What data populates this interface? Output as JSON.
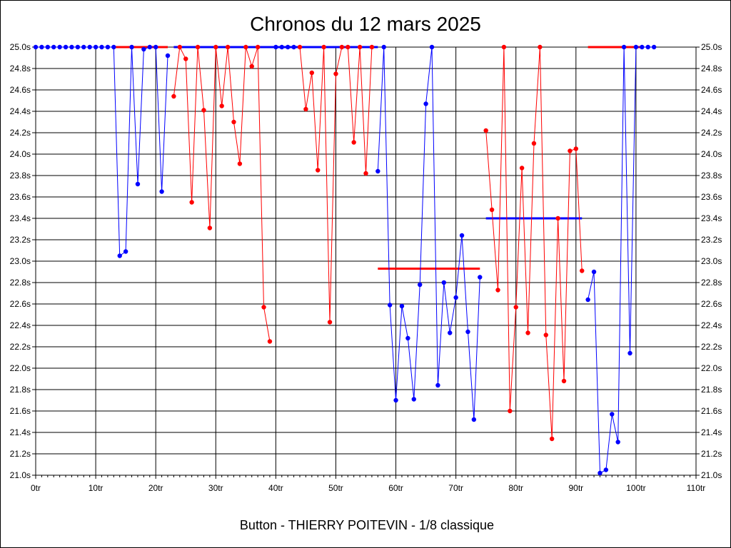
{
  "title": "Chronos du 12 mars 2025",
  "caption": "Button - THIERRY POITEVIN - 1/8 classique",
  "colors": {
    "red": "#ff0000",
    "blue": "#0000ff",
    "grid": "#000000",
    "background": "#ffffff"
  },
  "chart_data": {
    "type": "line",
    "title": "Chronos du 12 mars 2025",
    "xlabel": "",
    "ylabel": "",
    "x_unit": "tr",
    "y_unit": "s",
    "xlim": [
      0,
      110
    ],
    "ylim": [
      21.0,
      25.0
    ],
    "x_ticks": [
      0,
      10,
      20,
      30,
      40,
      50,
      60,
      70,
      80,
      90,
      100,
      110
    ],
    "x_tick_labels": [
      "0tr",
      "10tr",
      "20tr",
      "30tr",
      "40tr",
      "50tr",
      "60tr",
      "70tr",
      "80tr",
      "90tr",
      "100tr",
      "110tr"
    ],
    "y_ticks": [
      21.0,
      21.2,
      21.4,
      21.6,
      21.8,
      22.0,
      22.2,
      22.4,
      22.6,
      22.8,
      23.0,
      23.2,
      23.4,
      23.6,
      23.8,
      24.0,
      24.2,
      24.4,
      24.6,
      24.8,
      25.0
    ],
    "y_tick_labels": [
      "21.0s",
      "21.2s",
      "21.4s",
      "21.6s",
      "21.8s",
      "22.0s",
      "22.2s",
      "22.4s",
      "22.6s",
      "22.8s",
      "23.0s",
      "23.2s",
      "23.4s",
      "23.6s",
      "23.8s",
      "24.0s",
      "24.2s",
      "24.4s",
      "24.6s",
      "24.8s",
      "25.0s"
    ],
    "grid": true,
    "legend": "none",
    "series": [
      {
        "color": "#0000ff",
        "x": [
          0,
          1,
          2,
          3,
          4,
          5,
          6,
          7,
          8,
          9,
          10,
          11,
          12,
          13,
          14,
          15,
          16,
          17,
          18,
          19,
          20,
          21,
          22
        ],
        "y": [
          25.0,
          25.0,
          25.0,
          25.0,
          25.0,
          25.0,
          25.0,
          25.0,
          25.0,
          25.0,
          25.0,
          25.0,
          25.0,
          25.0,
          23.05,
          23.09,
          25.0,
          23.72,
          24.98,
          25.0,
          25.0,
          23.65,
          24.92
        ]
      },
      {
        "color": "#ff0000",
        "x": [
          23,
          24,
          25,
          26,
          27,
          28,
          29,
          30,
          31,
          32,
          33,
          34,
          35,
          36,
          37,
          38,
          39
        ],
        "y": [
          24.54,
          25.0,
          24.89,
          23.55,
          25.0,
          24.41,
          23.31,
          25.0,
          24.45,
          25.0,
          24.3,
          23.91,
          25.0,
          24.82,
          25.0,
          22.57,
          22.25
        ]
      },
      {
        "color": "#0000ff",
        "x": [
          40,
          41,
          42,
          43
        ],
        "y": [
          25.0,
          25.0,
          25.0,
          25.0
        ]
      },
      {
        "color": "#ff0000",
        "x": [
          44,
          45,
          46,
          47,
          48,
          49,
          50,
          51,
          52,
          53,
          54,
          55,
          56
        ],
        "y": [
          25.0,
          24.42,
          24.76,
          23.85,
          25.0,
          22.43,
          24.75,
          25.0,
          25.0,
          24.11,
          25.0,
          23.82,
          25.0
        ]
      },
      {
        "color": "#0000ff",
        "x": [
          57,
          58,
          59,
          60,
          61,
          62,
          63,
          64,
          65,
          66,
          67,
          68,
          69,
          70,
          71,
          72,
          73,
          74
        ],
        "y": [
          23.84,
          25.0,
          22.59,
          21.7,
          22.58,
          22.28,
          21.71,
          22.78,
          24.47,
          25.0,
          21.84,
          22.8,
          22.33,
          22.66,
          23.24,
          22.34,
          21.52,
          22.85
        ]
      },
      {
        "color": "#ff0000",
        "x": [
          75,
          76,
          77,
          78,
          79,
          80,
          81,
          82,
          83,
          84,
          85,
          86,
          87,
          88,
          89,
          90,
          91
        ],
        "y": [
          24.22,
          23.48,
          22.73,
          25.0,
          21.6,
          22.57,
          23.87,
          22.33,
          24.1,
          25.0,
          22.31,
          21.34,
          23.4,
          21.88,
          24.03,
          24.05,
          22.91
        ]
      },
      {
        "color": "#0000ff",
        "x": [
          92,
          93,
          94,
          95,
          96,
          97,
          98,
          99,
          100,
          101,
          102,
          103
        ],
        "y": [
          22.64,
          22.9,
          21.02,
          21.05,
          21.57,
          21.31,
          25.0,
          22.14,
          25.0,
          25.0,
          25.0,
          25.0
        ]
      }
    ],
    "reference_lines": [
      {
        "color": "#ff0000",
        "x": [
          13,
          22
        ],
        "y": 25.0
      },
      {
        "color": "#0000ff",
        "x": [
          23,
          57
        ],
        "y": 25.0
      },
      {
        "color": "#ff0000",
        "x": [
          57,
          74
        ],
        "y": 22.93
      },
      {
        "color": "#0000ff",
        "x": [
          75,
          91
        ],
        "y": 23.4
      },
      {
        "color": "#ff0000",
        "x": [
          92,
          101
        ],
        "y": 25.0
      }
    ]
  }
}
